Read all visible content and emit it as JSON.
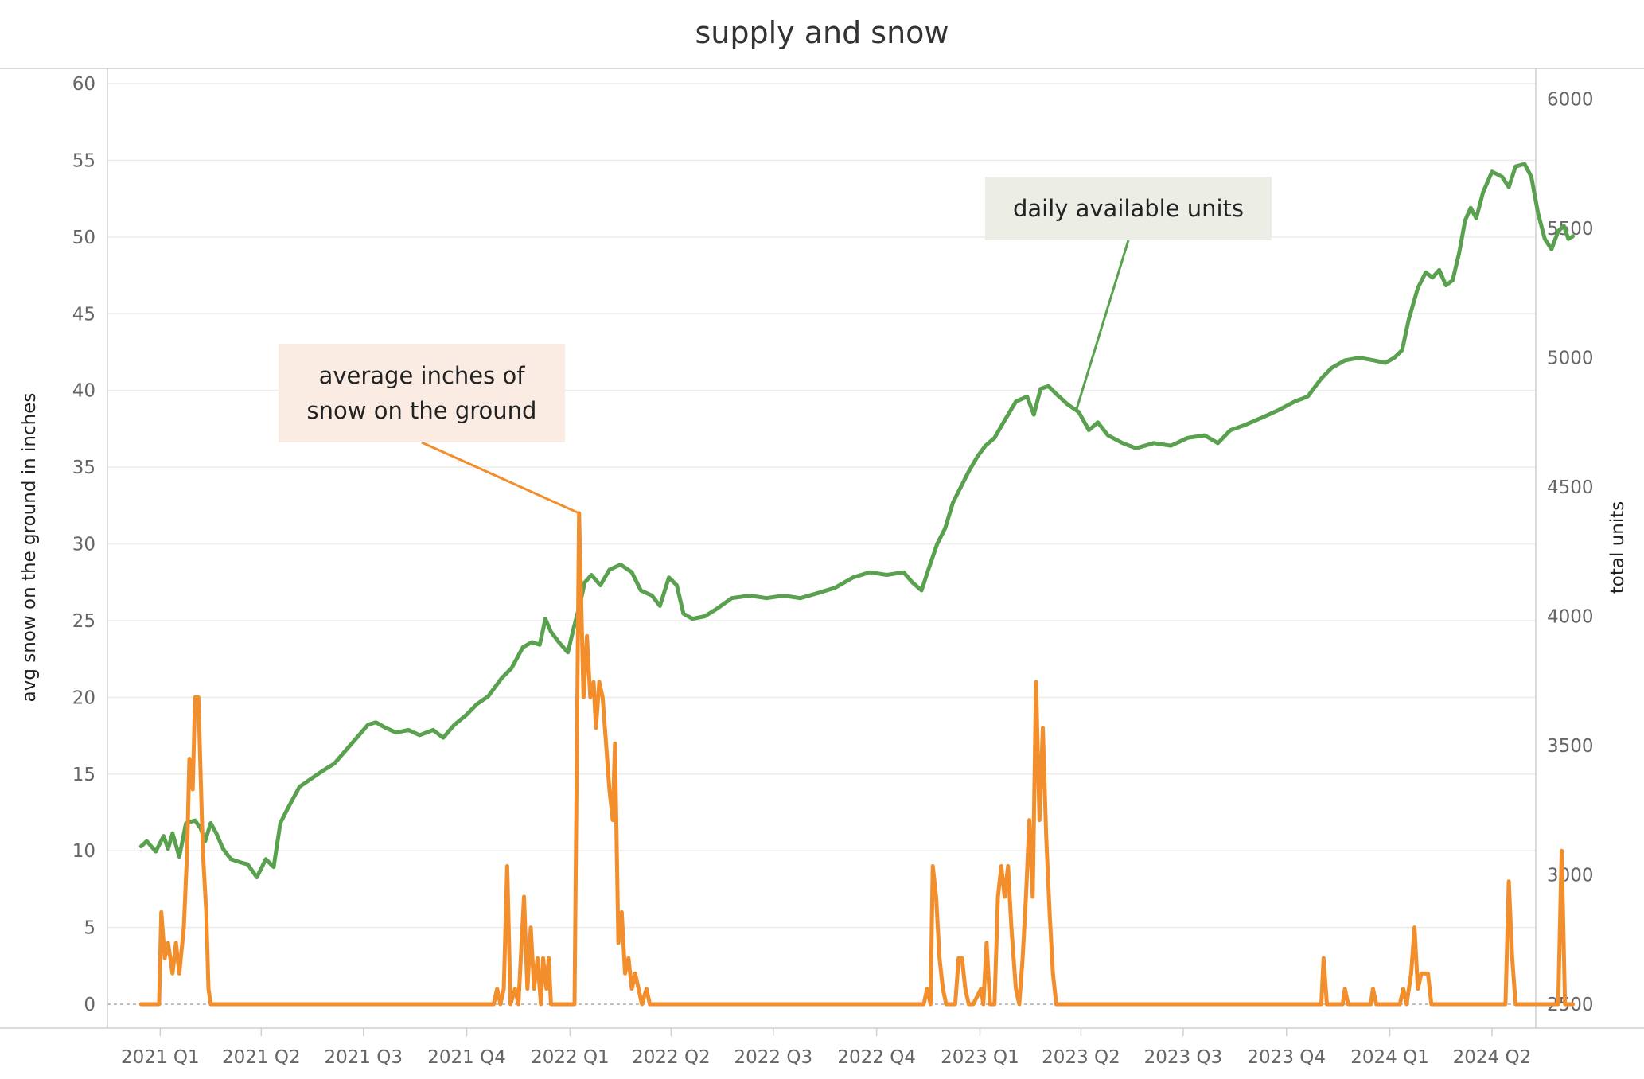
{
  "chart_data": {
    "type": "line",
    "title": "supply and snow",
    "x_axis": {
      "tick_labels": [
        "2021 Q1",
        "2021 Q2",
        "2021 Q3",
        "2021 Q4",
        "2022 Q1",
        "2022 Q2",
        "2022 Q3",
        "2022 Q4",
        "2023 Q1",
        "2023 Q2",
        "2023 Q3",
        "2023 Q4",
        "2024 Q1",
        "2024 Q2"
      ],
      "range": [
        "2020-11-15",
        "2024-05-10"
      ]
    },
    "y_axis_left": {
      "label": "avg snow on the ground in inches",
      "ticks": [
        0,
        5,
        10,
        15,
        20,
        25,
        30,
        35,
        40,
        45,
        50,
        55,
        60
      ],
      "range": [
        0,
        60
      ]
    },
    "y_axis_right": {
      "label": "total units",
      "ticks": [
        2500,
        3000,
        3500,
        4000,
        4500,
        5000,
        5500,
        6000
      ],
      "range": [
        2450,
        6030
      ]
    },
    "series": [
      {
        "name": "daily available units",
        "axis": "right",
        "color": "#59a14f",
        "points": [
          [
            "2020-12-15",
            3110
          ],
          [
            "2020-12-20",
            3130
          ],
          [
            "2020-12-28",
            3090
          ],
          [
            "2021-01-04",
            3150
          ],
          [
            "2021-01-08",
            3100
          ],
          [
            "2021-01-12",
            3160
          ],
          [
            "2021-01-18",
            3070
          ],
          [
            "2021-01-24",
            3200
          ],
          [
            "2021-02-01",
            3210
          ],
          [
            "2021-02-06",
            3180
          ],
          [
            "2021-02-10",
            3130
          ],
          [
            "2021-02-15",
            3200
          ],
          [
            "2021-02-20",
            3160
          ],
          [
            "2021-02-26",
            3100
          ],
          [
            "2021-03-05",
            3060
          ],
          [
            "2021-03-12",
            3050
          ],
          [
            "2021-03-20",
            3040
          ],
          [
            "2021-03-28",
            2990
          ],
          [
            "2021-04-05",
            3060
          ],
          [
            "2021-04-12",
            3030
          ],
          [
            "2021-04-18",
            3200
          ],
          [
            "2021-04-25",
            3260
          ],
          [
            "2021-05-05",
            3340
          ],
          [
            "2021-05-15",
            3370
          ],
          [
            "2021-05-25",
            3400
          ],
          [
            "2021-06-05",
            3430
          ],
          [
            "2021-06-15",
            3480
          ],
          [
            "2021-06-25",
            3530
          ],
          [
            "2021-07-05",
            3580
          ],
          [
            "2021-07-12",
            3590
          ],
          [
            "2021-07-20",
            3570
          ],
          [
            "2021-07-30",
            3550
          ],
          [
            "2021-08-10",
            3560
          ],
          [
            "2021-08-20",
            3540
          ],
          [
            "2021-09-01",
            3560
          ],
          [
            "2021-09-10",
            3530
          ],
          [
            "2021-09-20",
            3580
          ],
          [
            "2021-10-01",
            3620
          ],
          [
            "2021-10-10",
            3660
          ],
          [
            "2021-10-20",
            3690
          ],
          [
            "2021-11-01",
            3760
          ],
          [
            "2021-11-10",
            3800
          ],
          [
            "2021-11-20",
            3880
          ],
          [
            "2021-11-28",
            3900
          ],
          [
            "2021-12-05",
            3890
          ],
          [
            "2021-12-10",
            3990
          ],
          [
            "2021-12-15",
            3940
          ],
          [
            "2021-12-22",
            3900
          ],
          [
            "2021-12-30",
            3860
          ],
          [
            "2022-01-04",
            3950
          ],
          [
            "2022-01-10",
            4050
          ],
          [
            "2022-01-14",
            4130
          ],
          [
            "2022-01-20",
            4160
          ],
          [
            "2022-01-28",
            4120
          ],
          [
            "2022-02-05",
            4180
          ],
          [
            "2022-02-15",
            4200
          ],
          [
            "2022-02-25",
            4170
          ],
          [
            "2022-03-05",
            4100
          ],
          [
            "2022-03-15",
            4080
          ],
          [
            "2022-03-22",
            4040
          ],
          [
            "2022-03-30",
            4150
          ],
          [
            "2022-04-06",
            4120
          ],
          [
            "2022-04-12",
            4010
          ],
          [
            "2022-04-20",
            3990
          ],
          [
            "2022-05-01",
            4000
          ],
          [
            "2022-05-12",
            4030
          ],
          [
            "2022-05-25",
            4070
          ],
          [
            "2022-06-10",
            4080
          ],
          [
            "2022-06-25",
            4070
          ],
          [
            "2022-07-10",
            4080
          ],
          [
            "2022-07-25",
            4070
          ],
          [
            "2022-08-10",
            4090
          ],
          [
            "2022-08-25",
            4110
          ],
          [
            "2022-09-10",
            4150
          ],
          [
            "2022-09-25",
            4170
          ],
          [
            "2022-10-10",
            4160
          ],
          [
            "2022-10-25",
            4170
          ],
          [
            "2022-11-02",
            4130
          ],
          [
            "2022-11-10",
            4100
          ],
          [
            "2022-11-16",
            4180
          ],
          [
            "2022-11-24",
            4280
          ],
          [
            "2022-12-01",
            4340
          ],
          [
            "2022-12-08",
            4440
          ],
          [
            "2022-12-15",
            4500
          ],
          [
            "2022-12-22",
            4560
          ],
          [
            "2022-12-30",
            4620
          ],
          [
            "2023-01-06",
            4660
          ],
          [
            "2023-01-14",
            4690
          ],
          [
            "2023-01-22",
            4750
          ],
          [
            "2023-02-02",
            4830
          ],
          [
            "2023-02-12",
            4850
          ],
          [
            "2023-02-18",
            4780
          ],
          [
            "2023-02-24",
            4880
          ],
          [
            "2023-03-03",
            4890
          ],
          [
            "2023-03-10",
            4860
          ],
          [
            "2023-03-20",
            4820
          ],
          [
            "2023-03-30",
            4790
          ],
          [
            "2023-04-08",
            4720
          ],
          [
            "2023-04-16",
            4750
          ],
          [
            "2023-04-25",
            4700
          ],
          [
            "2023-05-08",
            4670
          ],
          [
            "2023-05-20",
            4650
          ],
          [
            "2023-06-05",
            4670
          ],
          [
            "2023-06-20",
            4660
          ],
          [
            "2023-07-05",
            4690
          ],
          [
            "2023-07-20",
            4700
          ],
          [
            "2023-08-01",
            4670
          ],
          [
            "2023-08-12",
            4720
          ],
          [
            "2023-08-25",
            4740
          ],
          [
            "2023-09-10",
            4770
          ],
          [
            "2023-09-25",
            4800
          ],
          [
            "2023-10-08",
            4830
          ],
          [
            "2023-10-20",
            4850
          ],
          [
            "2023-11-01",
            4920
          ],
          [
            "2023-11-10",
            4960
          ],
          [
            "2023-11-22",
            4990
          ],
          [
            "2023-12-05",
            5000
          ],
          [
            "2023-12-18",
            4990
          ],
          [
            "2023-12-28",
            4980
          ],
          [
            "2024-01-05",
            5000
          ],
          [
            "2024-01-12",
            5030
          ],
          [
            "2024-01-18",
            5150
          ],
          [
            "2024-01-26",
            5270
          ],
          [
            "2024-02-02",
            5330
          ],
          [
            "2024-02-08",
            5310
          ],
          [
            "2024-02-14",
            5340
          ],
          [
            "2024-02-20",
            5280
          ],
          [
            "2024-02-26",
            5300
          ],
          [
            "2024-03-03",
            5410
          ],
          [
            "2024-03-08",
            5530
          ],
          [
            "2024-03-13",
            5580
          ],
          [
            "2024-03-18",
            5540
          ],
          [
            "2024-03-24",
            5640
          ],
          [
            "2024-04-01",
            5720
          ],
          [
            "2024-04-10",
            5700
          ],
          [
            "2024-04-16",
            5660
          ],
          [
            "2024-04-22",
            5740
          ],
          [
            "2024-04-30",
            5750
          ],
          [
            "2024-05-06",
            5700
          ],
          [
            "2024-05-12",
            5560
          ],
          [
            "2024-05-18",
            5460
          ],
          [
            "2024-05-24",
            5420
          ],
          [
            "2024-05-30",
            5490
          ],
          [
            "2024-06-04",
            5510
          ],
          [
            "2024-06-08",
            5460
          ],
          [
            "2024-06-12",
            5470
          ]
        ]
      },
      {
        "name": "average inches of snow on the ground",
        "axis": "left",
        "color": "#f28e2b",
        "points": [
          [
            "2020-12-15",
            0
          ],
          [
            "2020-12-31",
            0
          ],
          [
            "2021-01-02",
            6
          ],
          [
            "2021-01-05",
            3
          ],
          [
            "2021-01-08",
            4
          ],
          [
            "2021-01-12",
            2
          ],
          [
            "2021-01-15",
            4
          ],
          [
            "2021-01-18",
            2
          ],
          [
            "2021-01-22",
            5
          ],
          [
            "2021-01-25",
            10
          ],
          [
            "2021-01-27",
            16
          ],
          [
            "2021-01-30",
            14
          ],
          [
            "2021-02-01",
            20
          ],
          [
            "2021-02-04",
            20
          ],
          [
            "2021-02-08",
            10
          ],
          [
            "2021-02-11",
            6
          ],
          [
            "2021-02-13",
            1
          ],
          [
            "2021-02-15",
            0
          ],
          [
            "2021-10-25",
            0
          ],
          [
            "2021-10-28",
            1
          ],
          [
            "2021-10-31",
            0
          ],
          [
            "2021-11-03",
            1
          ],
          [
            "2021-11-06",
            9
          ],
          [
            "2021-11-09",
            0
          ],
          [
            "2021-11-13",
            1
          ],
          [
            "2021-11-16",
            0
          ],
          [
            "2021-11-21",
            7
          ],
          [
            "2021-11-24",
            1
          ],
          [
            "2021-11-27",
            5
          ],
          [
            "2021-11-30",
            1
          ],
          [
            "2021-12-03",
            3
          ],
          [
            "2021-12-06",
            0
          ],
          [
            "2021-12-08",
            3
          ],
          [
            "2021-12-11",
            1
          ],
          [
            "2021-12-13",
            3
          ],
          [
            "2021-12-15",
            0
          ],
          [
            "2022-01-05",
            0
          ],
          [
            "2022-01-09",
            32
          ],
          [
            "2022-01-13",
            20
          ],
          [
            "2022-01-16",
            24
          ],
          [
            "2022-01-19",
            20
          ],
          [
            "2022-01-22",
            21
          ],
          [
            "2022-01-24",
            18
          ],
          [
            "2022-01-27",
            21
          ],
          [
            "2022-01-30",
            20
          ],
          [
            "2022-02-02",
            17
          ],
          [
            "2022-02-05",
            14
          ],
          [
            "2022-02-08",
            12
          ],
          [
            "2022-02-10",
            17
          ],
          [
            "2022-02-13",
            4
          ],
          [
            "2022-02-16",
            6
          ],
          [
            "2022-02-19",
            2
          ],
          [
            "2022-02-22",
            3
          ],
          [
            "2022-02-25",
            1
          ],
          [
            "2022-02-28",
            2
          ],
          [
            "2022-03-03",
            1
          ],
          [
            "2022-03-06",
            0
          ],
          [
            "2022-03-10",
            1
          ],
          [
            "2022-03-13",
            0
          ],
          [
            "2022-11-12",
            0
          ],
          [
            "2022-11-15",
            1
          ],
          [
            "2022-11-18",
            0
          ],
          [
            "2022-11-20",
            9
          ],
          [
            "2022-11-23",
            7
          ],
          [
            "2022-11-26",
            3
          ],
          [
            "2022-11-29",
            1
          ],
          [
            "2022-12-02",
            0
          ],
          [
            "2022-12-10",
            0
          ],
          [
            "2022-12-13",
            3
          ],
          [
            "2022-12-16",
            3
          ],
          [
            "2022-12-19",
            1
          ],
          [
            "2022-12-22",
            0
          ],
          [
            "2022-12-26",
            0
          ],
          [
            "2023-01-02",
            1
          ],
          [
            "2023-01-04",
            0
          ],
          [
            "2023-01-07",
            4
          ],
          [
            "2023-01-10",
            0
          ],
          [
            "2023-01-14",
            0
          ],
          [
            "2023-01-17",
            7
          ],
          [
            "2023-01-20",
            9
          ],
          [
            "2023-01-23",
            7
          ],
          [
            "2023-01-26",
            9
          ],
          [
            "2023-01-29",
            5
          ],
          [
            "2023-02-02",
            1
          ],
          [
            "2023-02-05",
            0
          ],
          [
            "2023-02-08",
            3
          ],
          [
            "2023-02-11",
            7
          ],
          [
            "2023-02-14",
            12
          ],
          [
            "2023-02-17",
            7
          ],
          [
            "2023-02-20",
            21
          ],
          [
            "2023-02-23",
            12
          ],
          [
            "2023-02-26",
            18
          ],
          [
            "2023-03-01",
            11
          ],
          [
            "2023-03-04",
            6
          ],
          [
            "2023-03-07",
            2
          ],
          [
            "2023-03-10",
            0
          ],
          [
            "2023-11-01",
            0
          ],
          [
            "2023-11-03",
            3
          ],
          [
            "2023-11-06",
            0
          ],
          [
            "2023-11-20",
            0
          ],
          [
            "2023-11-22",
            1
          ],
          [
            "2023-11-25",
            0
          ],
          [
            "2023-12-15",
            0
          ],
          [
            "2023-12-17",
            1
          ],
          [
            "2023-12-20",
            0
          ],
          [
            "2024-01-10",
            0
          ],
          [
            "2024-01-13",
            1
          ],
          [
            "2024-01-16",
            0
          ],
          [
            "2024-01-20",
            2
          ],
          [
            "2024-01-23",
            5
          ],
          [
            "2024-01-26",
            1
          ],
          [
            "2024-01-29",
            2
          ],
          [
            "2024-02-01",
            2
          ],
          [
            "2024-02-04",
            2
          ],
          [
            "2024-02-07",
            0
          ],
          [
            "2024-04-13",
            0
          ],
          [
            "2024-04-16",
            8
          ],
          [
            "2024-04-19",
            3
          ],
          [
            "2024-04-22",
            0
          ],
          [
            "2024-05-30",
            0
          ],
          [
            "2024-06-02",
            10
          ],
          [
            "2024-06-05",
            0
          ],
          [
            "2024-06-12",
            0
          ]
        ]
      }
    ],
    "annotations": [
      {
        "text_lines": [
          "average inches of",
          "snow on the ground"
        ],
        "series": "snow",
        "target": [
          "2022-01-09",
          32
        ],
        "fill": "#fbece3"
      },
      {
        "text_lines": [
          "daily available units"
        ],
        "series": "units",
        "target": [
          "2023-03-28",
          4800
        ],
        "fill": "#eceee6"
      }
    ],
    "grid": true,
    "zero_line": "dashed"
  }
}
